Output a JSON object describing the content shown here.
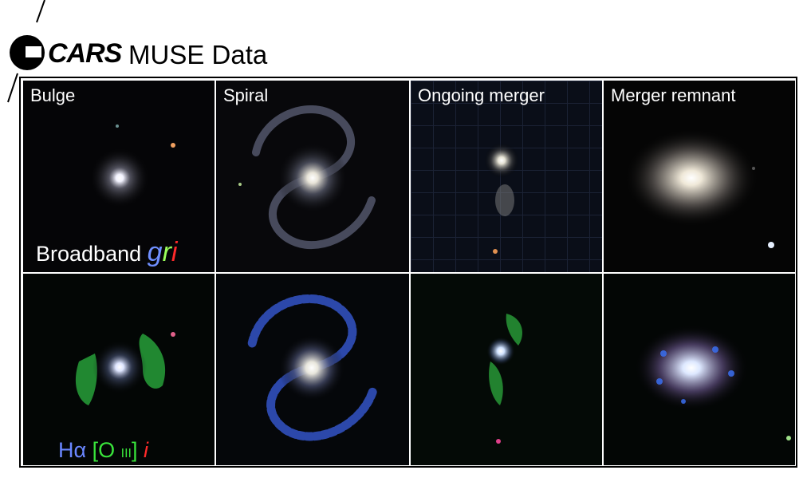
{
  "header": {
    "logo_text": "CARS",
    "title": "MUSE Data"
  },
  "panels": {
    "col1": "Bulge",
    "col2": "Spiral",
    "col3": "Ongoing merger",
    "col4": "Merger remnant"
  },
  "captions": {
    "broadband_prefix": "Broadband",
    "broadband_g": "g",
    "broadband_r": "r",
    "broadband_i": "i",
    "lines_ha": "Hα",
    "lines_oiii_open": "[O",
    "lines_oiii_roman": "III",
    "lines_oiii_close": "]",
    "lines_i": "i"
  },
  "colors": {
    "g": "#6f8fff",
    "r": "#9aff5a",
    "i": "#ff2a2a",
    "ha": "#6a86ff",
    "oiii": "#39e33b"
  }
}
